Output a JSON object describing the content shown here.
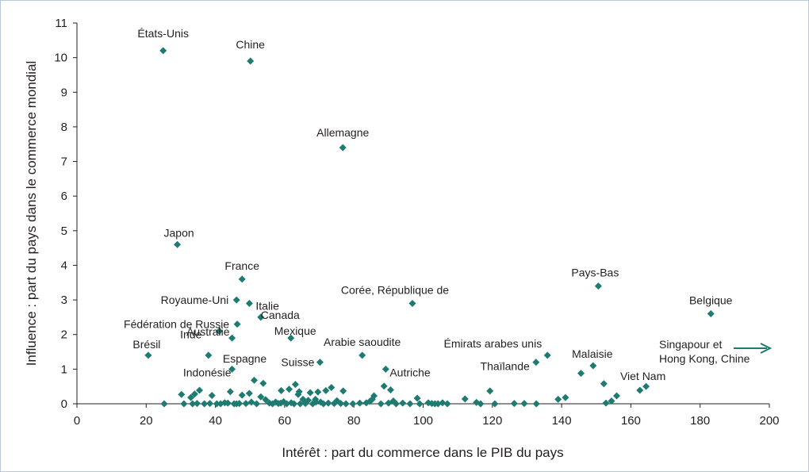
{
  "chart_data": {
    "type": "scatter",
    "xlabel": "Intérêt : part du commerce dans le PIB du pays",
    "ylabel": "Influence : part du pays dans le commerce mondial",
    "xlim": [
      0,
      200
    ],
    "ylim": [
      0,
      11
    ],
    "xticks": [
      "0",
      "20",
      "40",
      "60",
      "80",
      "100",
      "120",
      "140",
      "160",
      "180",
      "200"
    ],
    "yticks": [
      "0",
      "1",
      "2",
      "3",
      "4",
      "5",
      "6",
      "7",
      "8",
      "9",
      "10",
      "11"
    ],
    "grid": false,
    "marker_color": "#1e7b72",
    "labeled_points": [
      {
        "label": "États-Unis",
        "x": 24.9,
        "y": 10.2
      },
      {
        "label": "Chine",
        "x": 50.1,
        "y": 9.9
      },
      {
        "label": "Allemagne",
        "x": 76.8,
        "y": 7.4
      },
      {
        "label": "Japon",
        "x": 29.0,
        "y": 4.6
      },
      {
        "label": "France",
        "x": 47.7,
        "y": 3.6
      },
      {
        "label": "Pays-Bas",
        "x": 150.6,
        "y": 3.4
      },
      {
        "label": "Royaume-Uni",
        "x": 46.1,
        "y": 3.0
      },
      {
        "label": "Italie",
        "x": 49.8,
        "y": 2.9
      },
      {
        "label": "Corée, République de",
        "x": 96.9,
        "y": 2.9
      },
      {
        "label": "Canada",
        "x": 53.1,
        "y": 2.5
      },
      {
        "label": "Belgique",
        "x": 183.1,
        "y": 2.6
      },
      {
        "label": "Fédération de Russie",
        "x": 46.3,
        "y": 2.3
      },
      {
        "label": "Inde",
        "x": 41.1,
        "y": 2.1
      },
      {
        "label": "Mexique",
        "x": 61.8,
        "y": 1.9
      },
      {
        "label": "Australie",
        "x": 44.8,
        "y": 1.9
      },
      {
        "label": "Brésil",
        "x": 20.6,
        "y": 1.4
      },
      {
        "label": "Espagne",
        "x": 38.0,
        "y": 1.4
      },
      {
        "label": "Arabie saoudite",
        "x": 82.4,
        "y": 1.4
      },
      {
        "label": "Émirats arabes unis",
        "x": 135.9,
        "y": 1.4
      },
      {
        "label": "Malaisie",
        "x": 149.1,
        "y": 1.1
      },
      {
        "label": "Thaïlande",
        "x": 132.6,
        "y": 1.2
      },
      {
        "label": "Suisse",
        "x": 70.2,
        "y": 1.2
      },
      {
        "label": "Indonésie",
        "x": 44.8,
        "y": 1.0
      },
      {
        "label": "Autriche",
        "x": 89.2,
        "y": 1.0
      },
      {
        "label": "Viet Nam",
        "x": 164.4,
        "y": 0.5
      }
    ],
    "points": [
      {
        "x": 30.2,
        "y": 0.27
      },
      {
        "x": 30.9,
        "y": 0.0
      },
      {
        "x": 32.9,
        "y": 0.18
      },
      {
        "x": 33.4,
        "y": 0.0
      },
      {
        "x": 34.0,
        "y": 0.28
      },
      {
        "x": 34.7,
        "y": 0.01
      },
      {
        "x": 35.4,
        "y": 0.39
      },
      {
        "x": 36.8,
        "y": 0.0
      },
      {
        "x": 38.4,
        "y": 0.01
      },
      {
        "x": 39.0,
        "y": 0.24
      },
      {
        "x": 40.4,
        "y": 0.0
      },
      {
        "x": 41.5,
        "y": 0.0
      },
      {
        "x": 42.7,
        "y": 0.03
      },
      {
        "x": 43.6,
        "y": 0.02
      },
      {
        "x": 44.3,
        "y": 0.35
      },
      {
        "x": 45.4,
        "y": 0.0
      },
      {
        "x": 46.1,
        "y": 0.0
      },
      {
        "x": 46.9,
        "y": 0.01
      },
      {
        "x": 47.7,
        "y": 0.25
      },
      {
        "x": 48.8,
        "y": 0.01
      },
      {
        "x": 49.8,
        "y": 0.3
      },
      {
        "x": 50.4,
        "y": 0.05
      },
      {
        "x": 51.2,
        "y": 0.68
      },
      {
        "x": 51.9,
        "y": 0.0
      },
      {
        "x": 53.1,
        "y": 0.2
      },
      {
        "x": 53.8,
        "y": 0.59
      },
      {
        "x": 54.5,
        "y": 0.12
      },
      {
        "x": 55.6,
        "y": 0.02
      },
      {
        "x": 56.5,
        "y": 0.0
      },
      {
        "x": 57.4,
        "y": 0.05
      },
      {
        "x": 58.2,
        "y": 0.01
      },
      {
        "x": 59.0,
        "y": 0.38
      },
      {
        "x": 59.7,
        "y": 0.06
      },
      {
        "x": 60.6,
        "y": 0.0
      },
      {
        "x": 61.3,
        "y": 0.42
      },
      {
        "x": 61.9,
        "y": 0.03
      },
      {
        "x": 62.7,
        "y": 0.0
      },
      {
        "x": 63.1,
        "y": 0.56
      },
      {
        "x": 63.9,
        "y": 0.27
      },
      {
        "x": 64.5,
        "y": 0.0
      },
      {
        "x": 65.3,
        "y": 0.13
      },
      {
        "x": 66.0,
        "y": 0.01
      },
      {
        "x": 66.8,
        "y": 0.1
      },
      {
        "x": 67.4,
        "y": 0.32
      },
      {
        "x": 68.1,
        "y": 0.0
      },
      {
        "x": 68.9,
        "y": 0.13
      },
      {
        "x": 69.6,
        "y": 0.34
      },
      {
        "x": 70.4,
        "y": 0.05
      },
      {
        "x": 71.2,
        "y": 0.0
      },
      {
        "x": 71.9,
        "y": 0.38
      },
      {
        "x": 72.6,
        "y": 0.02
      },
      {
        "x": 73.5,
        "y": 0.47
      },
      {
        "x": 74.3,
        "y": 0.01
      },
      {
        "x": 75.1,
        "y": 0.09
      },
      {
        "x": 76.2,
        "y": 0.01
      },
      {
        "x": 76.9,
        "y": 0.37
      },
      {
        "x": 77.7,
        "y": 0.0
      },
      {
        "x": 79.7,
        "y": 0.0
      },
      {
        "x": 81.7,
        "y": 0.02
      },
      {
        "x": 83.6,
        "y": 0.03
      },
      {
        "x": 84.6,
        "y": 0.07
      },
      {
        "x": 85.3,
        "y": 0.13
      },
      {
        "x": 85.8,
        "y": 0.23
      },
      {
        "x": 87.8,
        "y": 0.0
      },
      {
        "x": 88.7,
        "y": 0.51
      },
      {
        "x": 90.0,
        "y": 0.02
      },
      {
        "x": 90.6,
        "y": 0.4
      },
      {
        "x": 91.4,
        "y": 0.08
      },
      {
        "x": 92.2,
        "y": 0.0
      },
      {
        "x": 94.1,
        "y": 0.02
      },
      {
        "x": 96.2,
        "y": 0.0
      },
      {
        "x": 98.3,
        "y": 0.16
      },
      {
        "x": 99.0,
        "y": 0.0
      },
      {
        "x": 101.5,
        "y": 0.03
      },
      {
        "x": 102.5,
        "y": 0.01
      },
      {
        "x": 103.4,
        "y": 0.0
      },
      {
        "x": 104.3,
        "y": 0.0
      },
      {
        "x": 105.6,
        "y": 0.03
      },
      {
        "x": 107.0,
        "y": 0.0
      },
      {
        "x": 112.1,
        "y": 0.14
      },
      {
        "x": 115.4,
        "y": 0.04
      },
      {
        "x": 116.6,
        "y": 0.0
      },
      {
        "x": 119.3,
        "y": 0.37
      },
      {
        "x": 120.7,
        "y": 0.0
      },
      {
        "x": 126.3,
        "y": 0.01
      },
      {
        "x": 129.2,
        "y": 0.01
      },
      {
        "x": 132.7,
        "y": 0.0
      },
      {
        "x": 139.0,
        "y": 0.13
      },
      {
        "x": 141.1,
        "y": 0.18
      },
      {
        "x": 145.6,
        "y": 0.88
      },
      {
        "x": 152.2,
        "y": 0.58
      },
      {
        "x": 152.8,
        "y": 0.02
      },
      {
        "x": 154.4,
        "y": 0.08
      },
      {
        "x": 155.9,
        "y": 0.23
      },
      {
        "x": 162.6,
        "y": 0.39
      },
      {
        "x": 25.2,
        "y": 0.0
      },
      {
        "x": 58.9,
        "y": 0.02
      },
      {
        "x": 64.2,
        "y": 0.35
      },
      {
        "x": 69.0,
        "y": 0.05
      }
    ]
  },
  "annotations": {
    "offscale_label_line1": "Singapour et",
    "offscale_label_line2": "Hong Kong, Chine"
  }
}
